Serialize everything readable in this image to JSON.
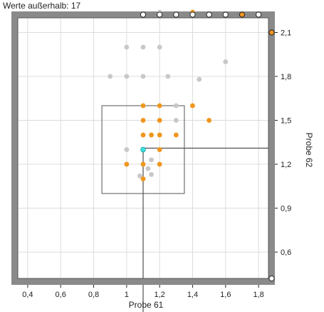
{
  "header": {
    "label": "Werte außerhalb:",
    "count": "17"
  },
  "chart_data": {
    "type": "scatter",
    "xlabel": "Probe 61",
    "ylabel": "Probe 62",
    "xlim": [
      0.34,
      1.86
    ],
    "ylim": [
      0.42,
      2.2
    ],
    "x_ticks": [
      0.4,
      0.6,
      0.8,
      1.0,
      1.2,
      1.4,
      1.6,
      1.8
    ],
    "x_tick_labels": [
      "0,4",
      "0,6",
      "0,8",
      "1",
      "1,2",
      "1,4",
      "1,6",
      "1,8"
    ],
    "y_ticks": [
      0.6,
      0.9,
      1.2,
      1.5,
      1.8,
      2.1
    ],
    "y_tick_labels": [
      "0,6",
      "0,9",
      "1,2",
      "1,5",
      "1,8",
      "2,1"
    ],
    "grid": true,
    "colors": {
      "gray": "#c8c8c8",
      "orange": "#f0961e",
      "cyan": "#40e0e0",
      "frame": "#8a8a8a",
      "box": "#707070",
      "grid": "#dcdcdc",
      "crosshair": "#505050"
    },
    "series": [
      {
        "color": "gray",
        "points": [
          [
            1.0,
            2.0
          ],
          [
            1.1,
            2.0
          ],
          [
            1.2,
            2.0
          ],
          [
            1.6,
            1.9
          ],
          [
            0.9,
            1.8
          ],
          [
            1.0,
            1.8
          ],
          [
            1.1,
            1.8
          ],
          [
            1.25,
            1.8
          ],
          [
            1.44,
            1.78
          ],
          [
            1.3,
            1.6
          ],
          [
            1.3,
            1.5
          ],
          [
            1.0,
            1.3
          ],
          [
            1.15,
            1.23
          ],
          [
            1.13,
            1.17
          ],
          [
            1.08,
            1.12
          ],
          [
            1.15,
            1.13
          ]
        ]
      },
      {
        "color": "orange",
        "points": [
          [
            1.1,
            1.6
          ],
          [
            1.2,
            1.6
          ],
          [
            1.4,
            1.6
          ],
          [
            1.1,
            1.5
          ],
          [
            1.2,
            1.5
          ],
          [
            1.5,
            1.5
          ],
          [
            1.1,
            1.4
          ],
          [
            1.15,
            1.4
          ],
          [
            1.2,
            1.4
          ],
          [
            1.3,
            1.4
          ],
          [
            1.2,
            1.3
          ],
          [
            1.0,
            1.2
          ],
          [
            1.1,
            1.2
          ],
          [
            1.2,
            1.2
          ],
          [
            1.1,
            1.1
          ]
        ]
      },
      {
        "color": "cyan",
        "points": [
          [
            1.1,
            1.3
          ]
        ]
      }
    ],
    "selection_box": {
      "x": [
        0.85,
        1.35
      ],
      "y": [
        1.0,
        1.6
      ]
    },
    "crosshair": {
      "x": 1.1,
      "y": 1.31
    },
    "outside_markers": {
      "top": [
        {
          "x": 1.1,
          "style": "ring"
        },
        {
          "x": 1.2,
          "style": "ring"
        },
        {
          "x": 1.3,
          "style": "ring"
        },
        {
          "x": 1.4,
          "style": "ring"
        },
        {
          "x": 1.5,
          "style": "ring"
        },
        {
          "x": 1.6,
          "style": "ring"
        },
        {
          "x": 1.7,
          "style": "orange"
        },
        {
          "x": 1.8,
          "style": "ring"
        }
      ],
      "top_faint": [
        {
          "x": 1.2,
          "color": "gray"
        },
        {
          "x": 1.4,
          "color": "orange"
        }
      ],
      "right": [
        {
          "y": 2.1,
          "style": "orange"
        },
        {
          "y": 0.42,
          "style": "ring"
        }
      ]
    }
  }
}
